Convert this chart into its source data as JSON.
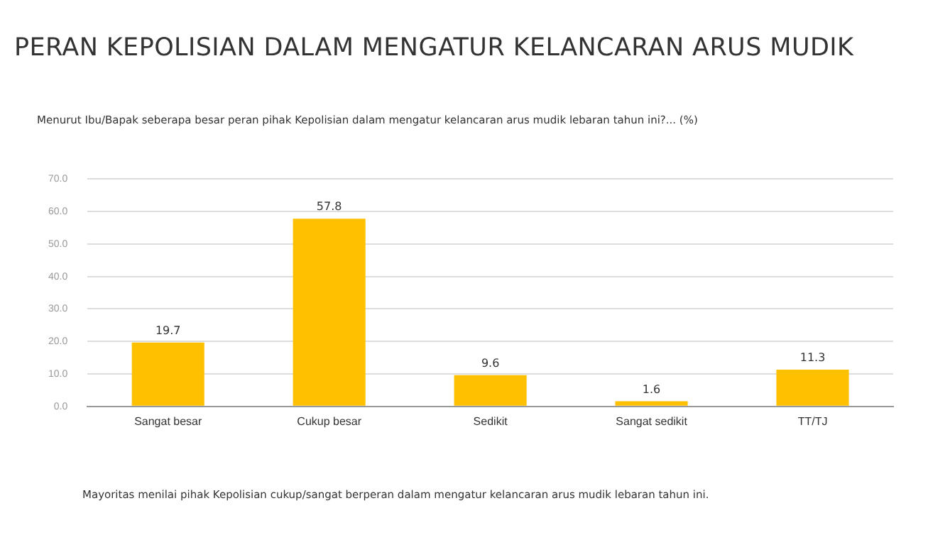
{
  "chart_data": {
    "type": "bar",
    "title": "PERAN KEPOLISIAN DALAM MENGATUR KELANCARAN ARUS MUDIK",
    "subtitle": "Menurut Ibu/Bapak seberapa besar peran pihak Kepolisian dalam mengatur kelancaran arus mudik lebaran tahun ini?... (%)",
    "categories": [
      "Sangat besar",
      "Cukup besar",
      "Sedikit",
      "Sangat sedikit",
      "TT/TJ"
    ],
    "values": [
      19.7,
      57.8,
      9.6,
      1.6,
      11.3
    ],
    "color": "#ffc000",
    "ylim": [
      0,
      70
    ],
    "yticks": [
      {
        "value": 0,
        "label": "0.0"
      },
      {
        "value": 10,
        "label": "10.0"
      },
      {
        "value": 20,
        "label": "20.0"
      },
      {
        "value": 30,
        "label": "30.0"
      },
      {
        "value": 40,
        "label": "40.0"
      },
      {
        "value": 50,
        "label": "50.0"
      },
      {
        "value": 60,
        "label": "60.0"
      },
      {
        "value": 70,
        "label": "70.0"
      }
    ],
    "grid": "y",
    "data_labels": true,
    "annotations": [
      "Mayoritas menilai pihak Kepolisian cukup/sangat berperan dalam mengatur kelancaran arus mudik lebaran tahun ini."
    ]
  }
}
